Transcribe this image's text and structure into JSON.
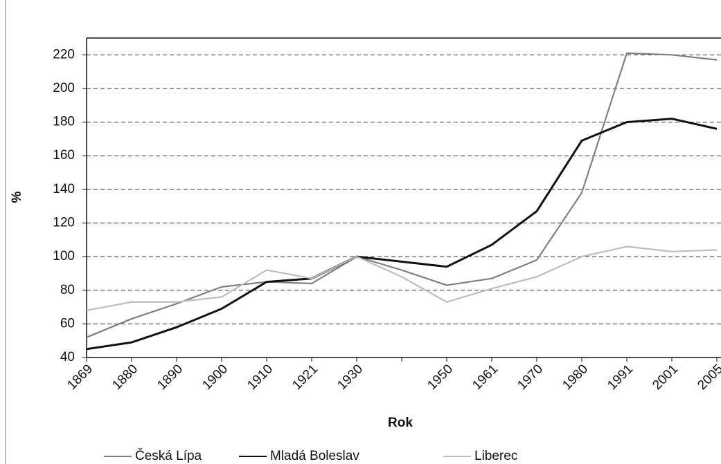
{
  "chart_data": {
    "type": "line",
    "xlabel": "Rok",
    "ylabel": "%",
    "categories": [
      "1869",
      "1880",
      "1890",
      "1900",
      "1910",
      "1921",
      "1930",
      null,
      "1950",
      "1961",
      "1970",
      "1980",
      "1991",
      "2001",
      "2005"
    ],
    "series": [
      {
        "name": "Česká Lípa",
        "color": "#808080",
        "values": [
          52,
          63,
          72,
          82,
          85,
          84,
          100,
          92,
          83,
          87,
          98,
          138,
          221,
          220,
          217
        ]
      },
      {
        "name": "Mladá Boleslav",
        "color": "#111111",
        "values": [
          45,
          49,
          58,
          69,
          85,
          87,
          100,
          97,
          94,
          107,
          127,
          169,
          180,
          182,
          176
        ]
      },
      {
        "name": "Liberec",
        "color": "#bdbdbd",
        "values": [
          68,
          73,
          73,
          76,
          92,
          87,
          100,
          88,
          73,
          81,
          88,
          100,
          106,
          103,
          104
        ]
      }
    ],
    "ylim": [
      40,
      230
    ],
    "yticks": [
      40,
      60,
      80,
      100,
      120,
      140,
      160,
      180,
      200,
      220
    ],
    "grid": true
  }
}
